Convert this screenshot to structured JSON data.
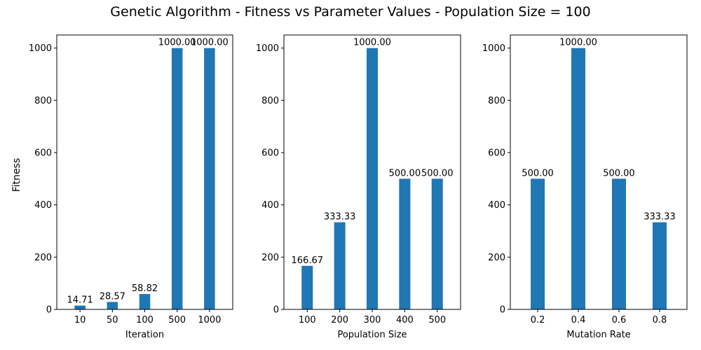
{
  "figure": {
    "title": "Genetic Algorithm - Fitness vs Parameter Values - Population Size = 100",
    "ylabel": "Fitness",
    "bar_color": "#1f77b4"
  },
  "chart_data": [
    {
      "type": "bar",
      "categories": [
        "10",
        "50",
        "100",
        "500",
        "1000"
      ],
      "values": [
        14.71,
        28.57,
        58.82,
        1000.0,
        1000.0
      ],
      "data_labels": [
        "14.71",
        "28.57",
        "58.82",
        "1000.00",
        "1000.00"
      ],
      "xlabel": "Iteration",
      "ylabel": "Fitness",
      "ylim": [
        0,
        1050
      ],
      "yticks": [
        0,
        200,
        400,
        600,
        800,
        1000
      ],
      "grid": false
    },
    {
      "type": "bar",
      "categories": [
        "100",
        "200",
        "300",
        "400",
        "500"
      ],
      "values": [
        166.67,
        333.33,
        1000.0,
        500.0,
        500.0
      ],
      "data_labels": [
        "166.67",
        "333.33",
        "1000.00",
        "500.00",
        "500.00"
      ],
      "xlabel": "Population Size",
      "ylabel": "",
      "ylim": [
        0,
        1050
      ],
      "yticks": [
        0,
        200,
        400,
        600,
        800,
        1000
      ],
      "grid": false
    },
    {
      "type": "bar",
      "categories": [
        "0.2",
        "0.4",
        "0.6",
        "0.8"
      ],
      "values": [
        500.0,
        1000.0,
        500.0,
        333.33
      ],
      "data_labels": [
        "500.00",
        "1000.00",
        "500.00",
        "333.33"
      ],
      "xlabel": "Mutation Rate",
      "ylabel": "",
      "ylim": [
        0,
        1050
      ],
      "yticks": [
        0,
        200,
        400,
        600,
        800,
        1000
      ],
      "grid": false
    }
  ]
}
